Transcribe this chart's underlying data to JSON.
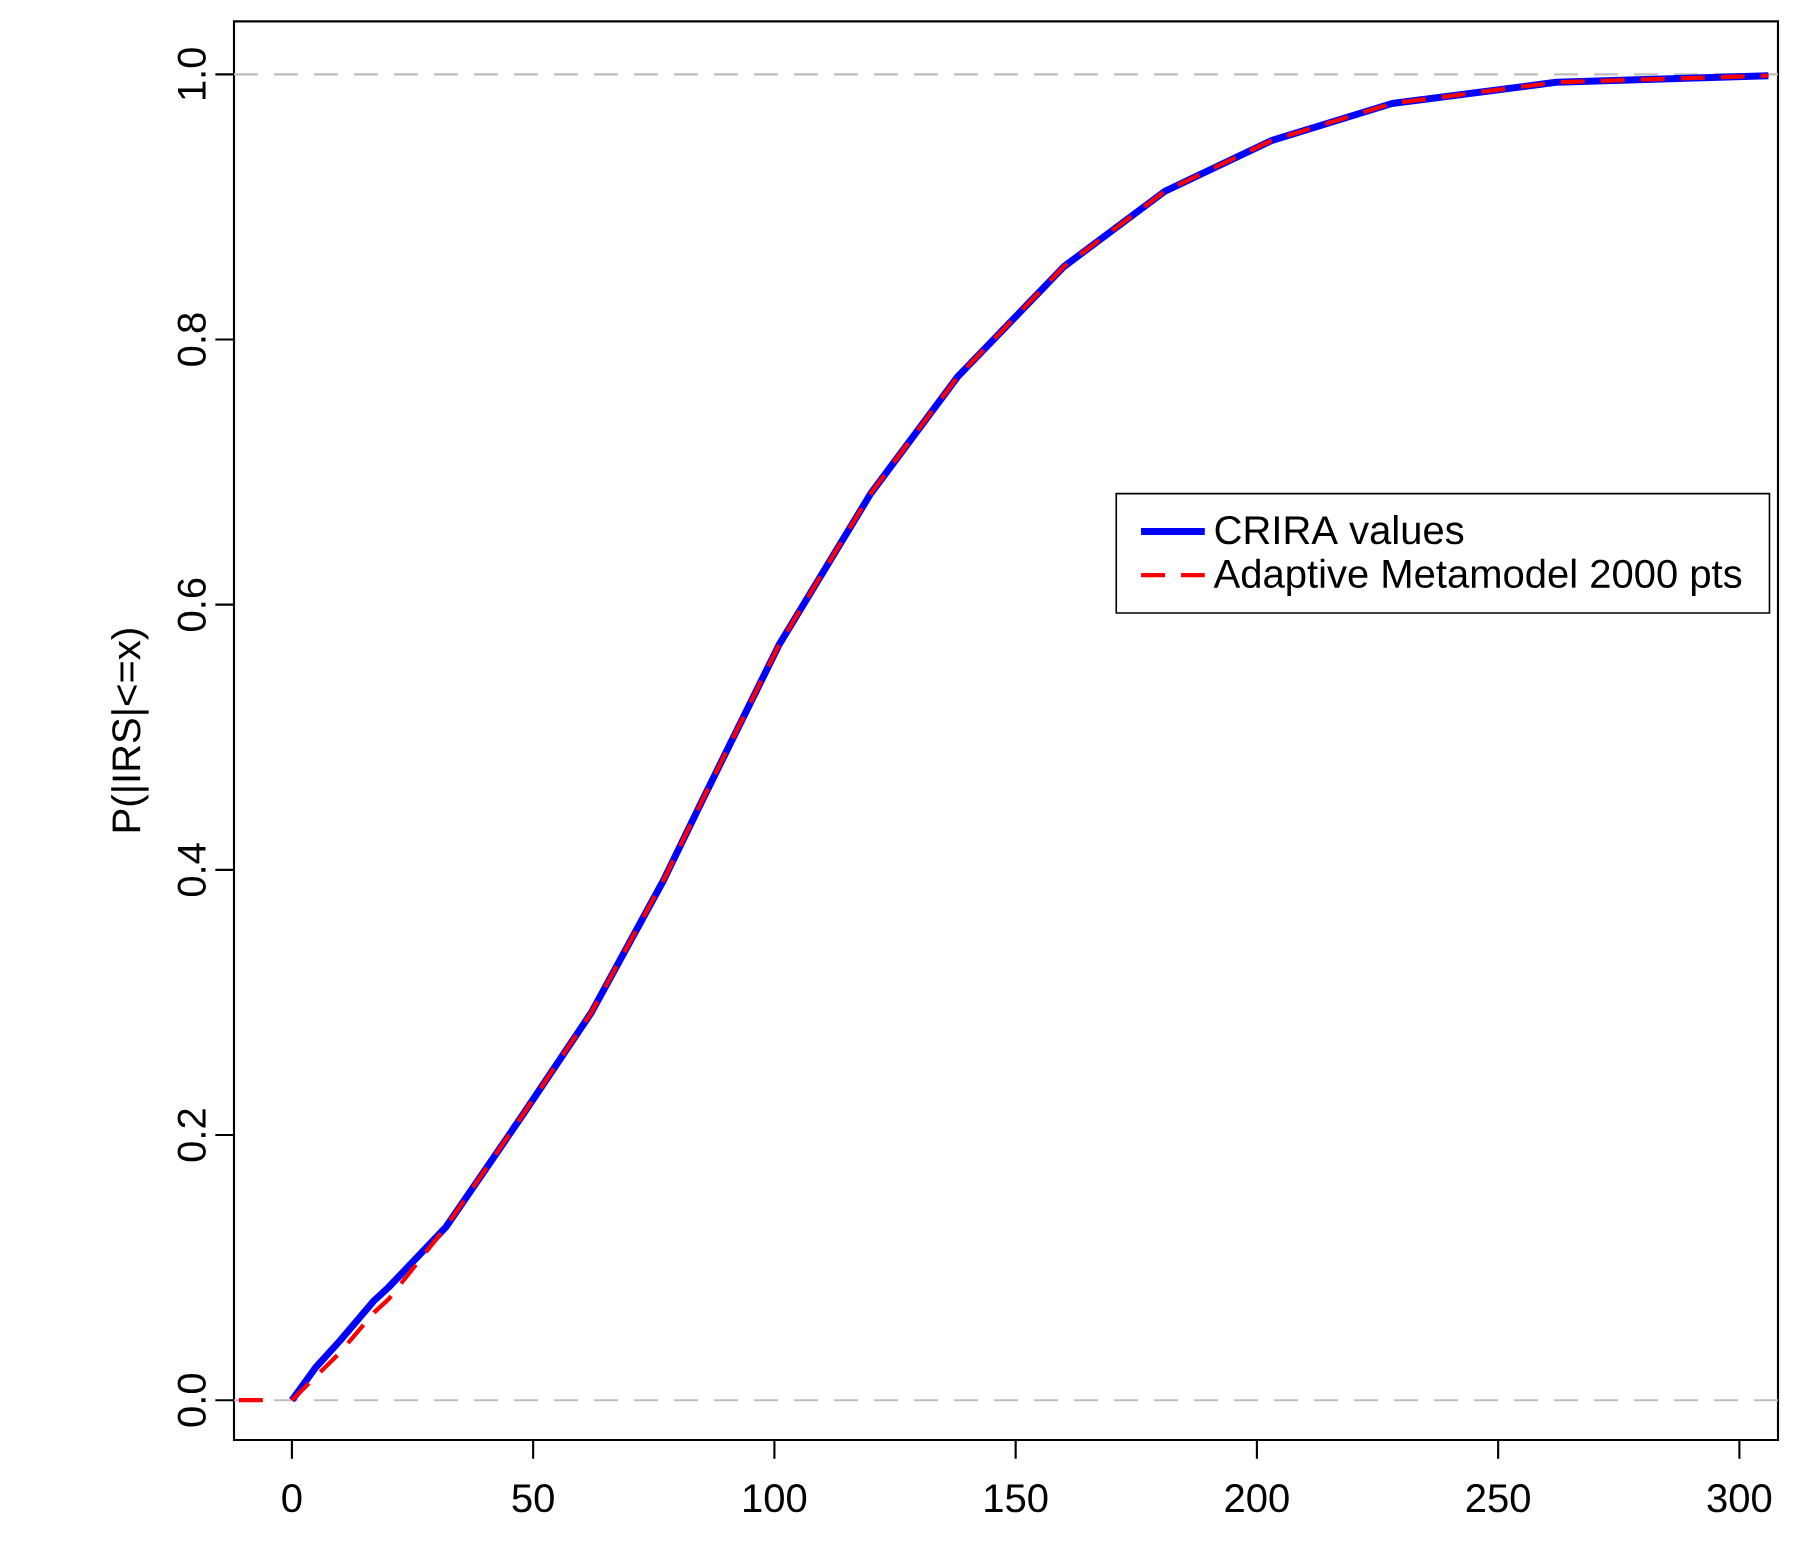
{
  "chart_data": {
    "type": "line",
    "ylabel": "P(|IRS|<=x)",
    "xlim": [
      -12,
      308
    ],
    "ylim": [
      -0.03,
      1.04
    ],
    "xticks": [
      0,
      50,
      100,
      150,
      200,
      250,
      300
    ],
    "yticks": [
      {
        "value": 0,
        "label": "0.0"
      },
      {
        "value": 0.2,
        "label": "0.2"
      },
      {
        "value": 0.4,
        "label": "0.4"
      },
      {
        "value": 0.6,
        "label": "0.6"
      },
      {
        "value": 0.8,
        "label": "0.8"
      },
      {
        "value": 1.0,
        "label": "1.0"
      }
    ],
    "legend": "right",
    "ref_lines": [
      {
        "axis": "y",
        "value": 0,
        "color": "#bebebe",
        "line_style": "dashed"
      },
      {
        "axis": "y",
        "value": 1,
        "color": "#bebebe",
        "line_style": "dashed"
      }
    ],
    "series": [
      {
        "name": "CRIRA values",
        "color": "#0000ff",
        "line_style": "solid",
        "x": [
          0,
          5,
          10,
          17,
          20,
          32,
          48,
          62,
          77,
          85,
          101,
          120,
          138,
          160,
          181,
          203,
          228,
          262,
          306
        ],
        "values": [
          0,
          0.025,
          0.045,
          0.075,
          0.085,
          0.131,
          0.216,
          0.292,
          0.392,
          0.452,
          0.57,
          0.684,
          0.772,
          0.855,
          0.912,
          0.95,
          0.978,
          0.994,
          0.999
        ]
      },
      {
        "name": "Adaptive Metamodel 2000 pts",
        "color": "#ff0000",
        "line_style": "dashed",
        "x": [
          -11,
          -6,
          -3,
          0,
          5,
          10,
          17,
          20,
          32,
          48,
          62,
          77,
          85,
          101,
          120,
          138,
          160,
          181,
          203,
          228,
          262,
          306
        ],
        "values": [
          0,
          0,
          null,
          0,
          0.018,
          0.036,
          0.066,
          0.076,
          0.131,
          0.216,
          0.292,
          0.392,
          0.452,
          0.57,
          0.684,
          0.772,
          0.855,
          0.912,
          0.95,
          0.978,
          0.994,
          0.999
        ]
      }
    ]
  }
}
